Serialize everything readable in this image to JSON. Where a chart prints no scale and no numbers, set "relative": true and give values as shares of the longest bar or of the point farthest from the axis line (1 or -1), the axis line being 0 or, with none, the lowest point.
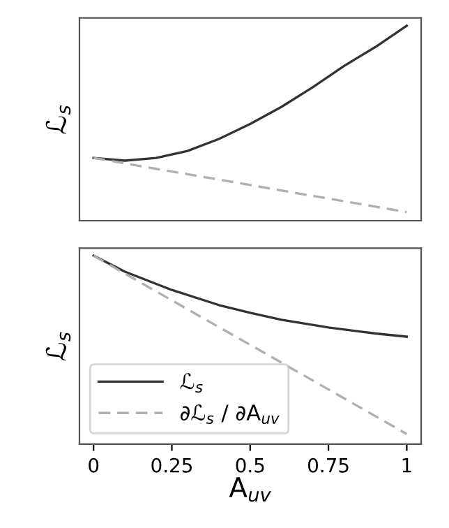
{
  "chart_data": [
    {
      "type": "line",
      "ylabel": "ℒ$_{s}$",
      "x": [
        0,
        0.1,
        0.2,
        0.3,
        0.4,
        0.5,
        0.6,
        0.7,
        0.8,
        0.9,
        1
      ],
      "xlim": [
        -0.045,
        1.046
      ],
      "relative": true,
      "tick_labels": false,
      "legend": false,
      "grid": false,
      "series": [
        {
          "color": "#333333",
          "line_style": "solid",
          "values": [
            0.322,
            0.308,
            0.322,
            0.358,
            0.419,
            0.496,
            0.584,
            0.685,
            0.794,
            0.891,
            1
          ]
        },
        {
          "color": "#b0b0b0",
          "line_style": "dashed",
          "values": [
            0.322,
            0.294,
            0.266,
            0.239,
            0.211,
            0.183,
            0.155,
            0.127,
            0.1,
            0.072,
            0.044
          ]
        }
      ]
    },
    {
      "type": "line",
      "ylabel": "ℒ$_{s}$",
      "xlabel": "A$_{uv}$",
      "x": [
        0,
        0.1,
        0.25,
        0.4,
        0.5,
        0.6,
        0.75,
        0.9,
        1
      ],
      "xlim": [
        -0.045,
        1.046
      ],
      "xticks": [
        0,
        0.25,
        0.5,
        0.75,
        1
      ],
      "relative": true,
      "tick_labels": "x",
      "legend": "lower left",
      "grid": false,
      "series": [
        {
          "name": "ℒ$_{s}$",
          "color": "#333333",
          "line_style": "solid",
          "values": [
            1,
            0.915,
            0.818,
            0.738,
            0.697,
            0.66,
            0.619,
            0.587,
            0.57
          ]
        },
        {
          "name": "∂ℒ$_{s}$ / ∂A$_{uv}$",
          "color": "#b0b0b0",
          "line_style": "dashed",
          "values": [
            1,
            0.905,
            0.763,
            0.621,
            0.527,
            0.432,
            0.29,
            0.148,
            0.053
          ]
        }
      ]
    }
  ]
}
